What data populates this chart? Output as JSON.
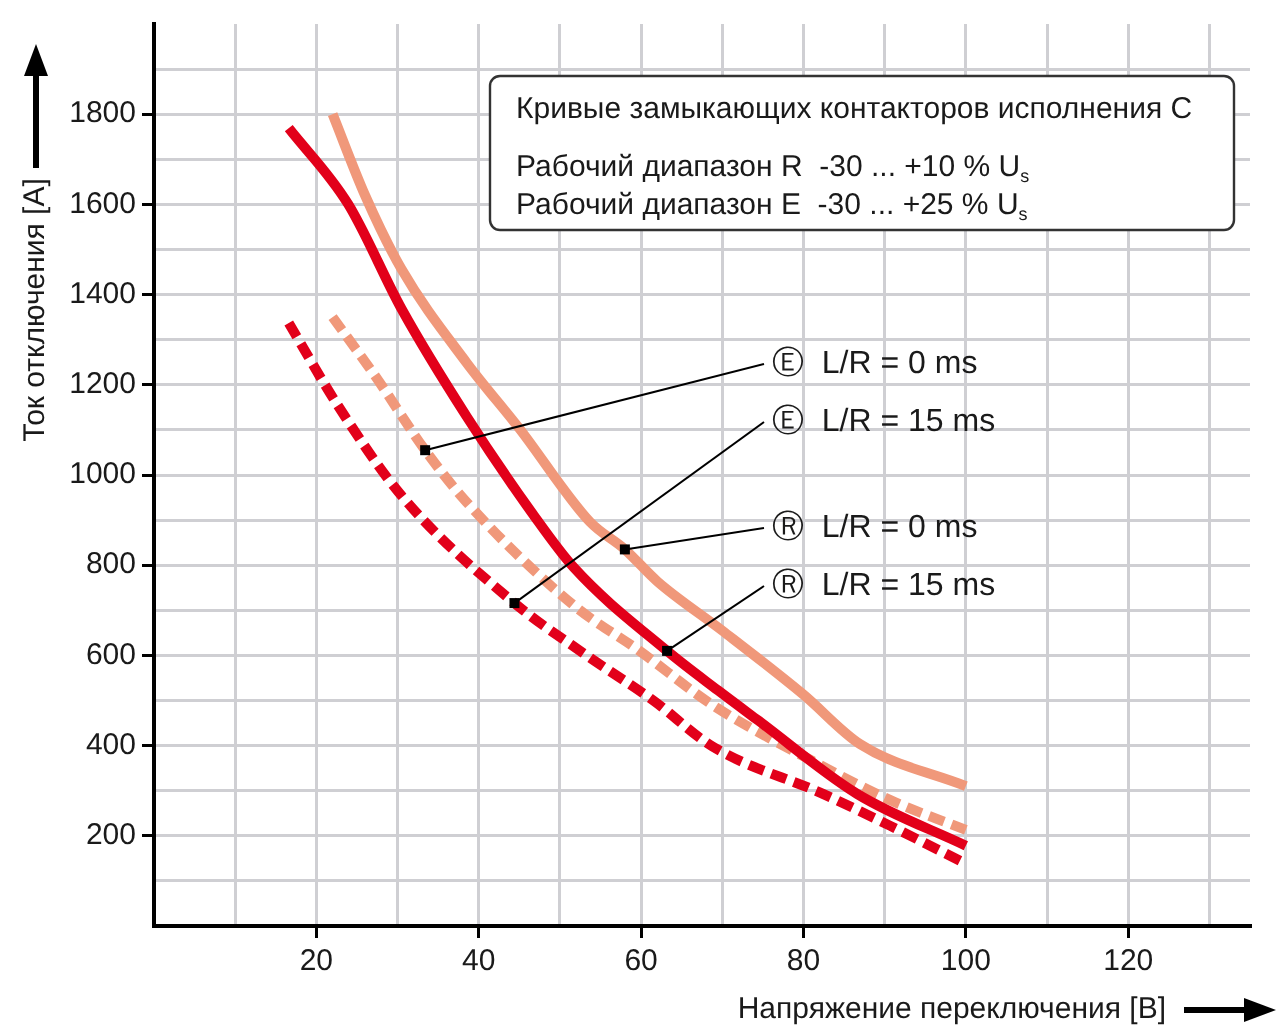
{
  "chart_data": {
    "type": "line",
    "xlabel": "Напряжение переключения [B]",
    "ylabel": "Ток отключения [A]",
    "xlim": [
      0,
      135
    ],
    "ylim": [
      0,
      2000
    ],
    "xticks": [
      {
        "value": 10,
        "label": null
      },
      20,
      {
        "value": 30,
        "label": null
      },
      40,
      {
        "value": 50,
        "label": null
      },
      60,
      {
        "value": 70,
        "label": null
      },
      80,
      {
        "value": 90,
        "label": null
      },
      100,
      {
        "value": 110,
        "label": null
      },
      120,
      {
        "value": 130,
        "label": null
      }
    ],
    "yticks": [
      {
        "value": 100,
        "label": null
      },
      200,
      {
        "value": 300,
        "label": null
      },
      400,
      {
        "value": 500,
        "label": null
      },
      600,
      {
        "value": 700,
        "label": null
      },
      800,
      {
        "value": 900,
        "label": null
      },
      1000,
      {
        "value": 1100,
        "label": null
      },
      1200,
      {
        "value": 1300,
        "label": null
      },
      1400,
      {
        "value": 1500,
        "label": null
      },
      1600,
      {
        "value": 1700,
        "label": null
      },
      1800,
      {
        "value": 1900,
        "label": null
      }
    ],
    "grid": true,
    "marker": "none",
    "series": [
      {
        "color": "#f0987a",
        "line_style": "solid",
        "x": [
          22,
          26,
          30.5,
          38.5,
          45,
          53.7,
          58,
          62,
          70,
          80,
          87,
          100
        ],
        "values": [
          1800,
          1620,
          1456,
          1249,
          1103,
          896,
          835,
          764,
          655,
          513,
          403,
          310
        ]
      },
      {
        "color": "#e2001a",
        "line_style": "solid",
        "x": [
          16.6,
          23.9,
          30.5,
          38.5,
          46.8,
          51.7,
          63.2,
          69.5,
          74.4,
          86.6,
          100
        ],
        "values": [
          1769,
          1601,
          1368,
          1130,
          910,
          795,
          610,
          522,
          456,
          293,
          178
        ]
      },
      {
        "color": "#f0987a",
        "line_style": "dashed",
        "x": [
          22,
          27.3,
          33.4,
          38.5,
          51.7,
          59.8,
          68.8,
          81,
          90.7,
          100
        ],
        "values": [
          1350,
          1218,
          1055,
          940,
          711,
          610,
          490,
          367,
          279,
          213
        ]
      },
      {
        "color": "#e2001a",
        "line_style": "dashed",
        "x": [
          16.6,
          22.4,
          30.5,
          44.4,
          53.2,
          61.5,
          68.8,
          82.4,
          90.7,
          100
        ],
        "values": [
          1337,
          1161,
          954,
          716,
          601,
          500,
          398,
          293,
          222,
          138
        ]
      }
    ],
    "annotations": [
      "Кривые замыкающих контакторов исполнения C",
      "Рабочий диапазон R  -30 ... +10 % U$_{s}$",
      "Рабочий диапазон E  -30 ... +25 % U$_{s}$",
      {
        "text": "Ⓔ  L/R = 0 ms",
        "x": 33.4,
        "y": 1055
      },
      {
        "text": "Ⓔ  L/R = 15 ms",
        "x": 44.4,
        "y": 716
      },
      {
        "text": "Ⓡ  L/R = 0 ms",
        "x": 58,
        "y": 835
      },
      {
        "text": "Ⓡ  L/R = 15 ms",
        "x": 63.2,
        "y": 610
      }
    ]
  }
}
